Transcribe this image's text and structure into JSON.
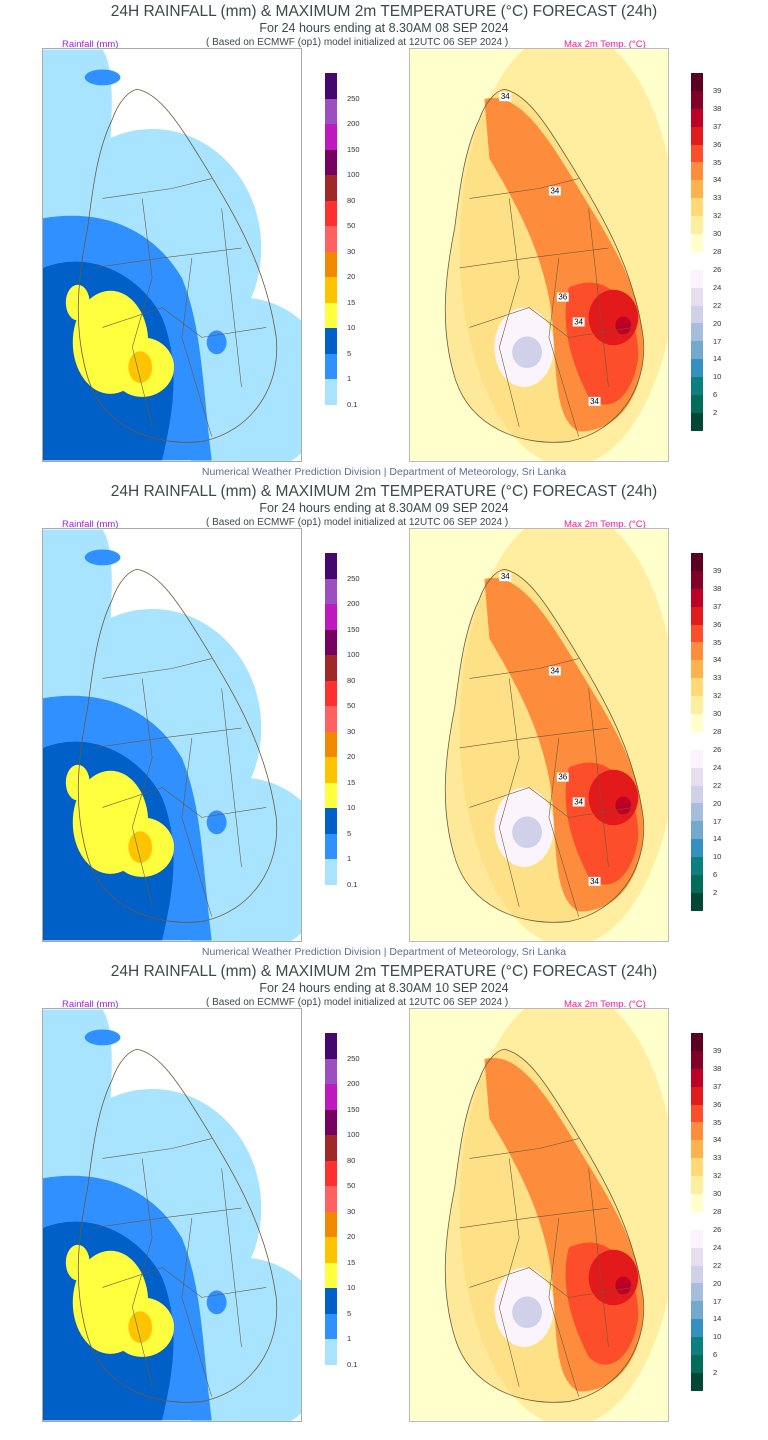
{
  "document": {
    "footer": "Numerical Weather Prediction Division | Department of Meteorology, Sri Lanka",
    "rain_label": "Rainfall (mm)",
    "temp_label": "Max 2m Temp. (°C)",
    "sections": [
      {
        "title": "24H RAINFALL (mm) & MAXIMUM 2m TEMPERATURE (°C) FORECAST (24h)",
        "subtitle": "For 24 hours ending at 8.30AM 08 SEP 2024",
        "based_on": "( Based on ECMWF (op1) model initialized at 12UTC 06 SEP 2024 )",
        "contour_labels": [
          "34",
          "34",
          "36",
          "34",
          "34"
        ]
      },
      {
        "title": "24H RAINFALL (mm) & MAXIMUM 2m TEMPERATURE (°C) FORECAST (24h)",
        "subtitle": "For 24 hours ending at 8.30AM 09 SEP 2024",
        "based_on": "( Based on ECMWF (op1) model initialized at 12UTC 06 SEP 2024 )",
        "contour_labels": [
          "34",
          "34",
          "36",
          "34",
          "34"
        ]
      },
      {
        "title": "24H RAINFALL (mm) & MAXIMUM 2m TEMPERATURE (°C) FORECAST (24h)",
        "subtitle": "For 24 hours ending at 8.30AM 10 SEP 2024",
        "based_on": "( Based on ECMWF (op1) model initialized at 12UTC 06 SEP 2024 )",
        "contour_labels": []
      }
    ]
  },
  "rain_legend": {
    "labels": [
      "250",
      "200",
      "150",
      "100",
      "80",
      "50",
      "30",
      "20",
      "15",
      "10",
      "5",
      "1",
      "0.1"
    ],
    "colors": [
      "#45086e",
      "#9a50c0",
      "#c018c0",
      "#780060",
      "#a02828",
      "#ff3030",
      "#ff6060",
      "#f08800",
      "#ffc400",
      "#ffff40",
      "#0060c8",
      "#3090ff",
      "#a8e4ff"
    ]
  },
  "temp_legend": {
    "labels": [
      "39",
      "38",
      "37",
      "36",
      "35",
      "34",
      "33",
      "32",
      "30",
      "28",
      "26",
      "24",
      "22",
      "20",
      "17",
      "14",
      "10",
      "6",
      "2"
    ],
    "colors": [
      "#5a0020",
      "#800026",
      "#bd0026",
      "#e31a1c",
      "#fc4e2a",
      "#fd8d3c",
      "#feb24c",
      "#fed976",
      "#ffeda0",
      "#ffffcc",
      "#ffffff",
      "#fcf4fc",
      "#e6dff0",
      "#d0d0e8",
      "#a6bddb",
      "#74a9cf",
      "#3690c0",
      "#0c8080",
      "#016c59",
      "#014636"
    ]
  }
}
